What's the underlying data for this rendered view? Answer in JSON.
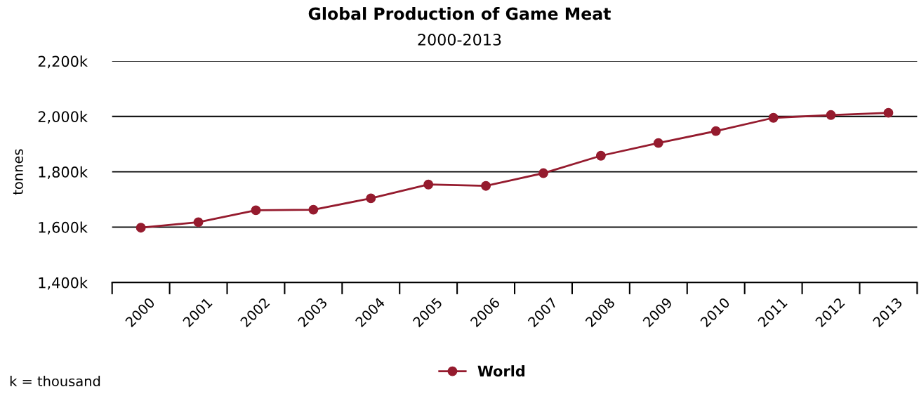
{
  "chart_data": {
    "type": "line",
    "title": "Global Production of Game Meat",
    "subtitle": "2000-2013",
    "ylabel": "tonnes",
    "categories": [
      "2000",
      "2001",
      "2002",
      "2003",
      "2004",
      "2005",
      "2006",
      "2007",
      "2008",
      "2009",
      "2010",
      "2011",
      "2012",
      "2013"
    ],
    "series": [
      {
        "name": "World",
        "color": "#951b2e",
        "values": [
          1598,
          1618,
          1661,
          1663,
          1704,
          1754,
          1749,
          1795,
          1858,
          1904,
          1947,
          1995,
          2005,
          2013
        ]
      }
    ],
    "ylim": [
      1400,
      2200
    ],
    "yticks": [
      {
        "value": 1400,
        "label": "1,400k"
      },
      {
        "value": 1600,
        "label": "1,600k"
      },
      {
        "value": 1800,
        "label": "1,800k"
      },
      {
        "value": 2000,
        "label": "2,000k"
      },
      {
        "value": 2200,
        "label": "2,200k"
      }
    ],
    "grid": "y",
    "legend": "bottom",
    "marker": "circle",
    "line_style": "solid",
    "annotations": [
      "k = thousand"
    ]
  }
}
